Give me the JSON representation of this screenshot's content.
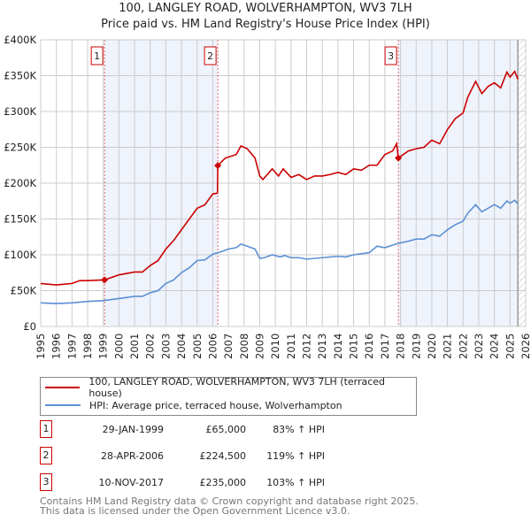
{
  "chart_data": {
    "type": "line",
    "title": "100, LANGLEY ROAD, WOLVERHAMPTON, WV3 7LH",
    "subtitle": "Price paid vs. HM Land Registry's House Price Index (HPI)",
    "xlim": [
      1995,
      2026
    ],
    "ylim": [
      0,
      400000
    ],
    "x_ticks": [
      "1995",
      "1996",
      "1997",
      "1998",
      "1999",
      "2000",
      "2001",
      "2002",
      "2003",
      "2004",
      "2005",
      "2006",
      "2007",
      "2008",
      "2009",
      "2010",
      "2011",
      "2012",
      "2013",
      "2014",
      "2015",
      "2016",
      "2017",
      "2018",
      "2019",
      "2020",
      "2021",
      "2022",
      "2023",
      "2024",
      "2025",
      "2026"
    ],
    "y_ticks": [
      {
        "v": 0,
        "label": "£0"
      },
      {
        "v": 50000,
        "label": "£50K"
      },
      {
        "v": 100000,
        "label": "£100K"
      },
      {
        "v": 150000,
        "label": "£150K"
      },
      {
        "v": 200000,
        "label": "£200K"
      },
      {
        "v": 250000,
        "label": "£250K"
      },
      {
        "v": 300000,
        "label": "£300K"
      },
      {
        "v": 350000,
        "label": "£350K"
      },
      {
        "v": 400000,
        "label": "£400K"
      }
    ],
    "grid": true,
    "legend_position": "below",
    "series": [
      {
        "name": "100, LANGLEY ROAD, WOLVERHAMPTON, WV3 7LH (terraced house)",
        "color": "#cc0000",
        "x": [
          1995,
          1996,
          1997,
          1997.5,
          1998,
          1999.08,
          2000,
          2001,
          2001.5,
          2002,
          2002.5,
          2003,
          2003.5,
          2004,
          2004.5,
          2005,
          2005.5,
          2006,
          2006.3,
          2006.32,
          2006.8,
          2007.5,
          2007.8,
          2008.2,
          2008.7,
          2009,
          2009.2,
          2009.8,
          2010.2,
          2010.5,
          2011,
          2011.5,
          2012,
          2012.5,
          2013,
          2013.5,
          2014,
          2014.5,
          2015,
          2015.5,
          2016,
          2016.5,
          2017,
          2017.5,
          2017.75,
          2017.86,
          2018.5,
          2019,
          2019.5,
          2020,
          2020.5,
          2021,
          2021.5,
          2022,
          2022.3,
          2022.8,
          2023.2,
          2023.6,
          2024,
          2024.4,
          2024.8,
          2025,
          2025.3,
          2025.5
        ],
        "y": [
          60000,
          58000,
          60000,
          64000,
          64000,
          65000,
          72000,
          76000,
          76000,
          85000,
          92000,
          108000,
          120000,
          135000,
          150000,
          165000,
          170000,
          185000,
          186000,
          224500,
          235000,
          240000,
          252000,
          248000,
          235000,
          210000,
          205000,
          220000,
          210000,
          220000,
          208000,
          212000,
          205000,
          210000,
          210000,
          212000,
          215000,
          212000,
          220000,
          218000,
          225000,
          225000,
          240000,
          245000,
          255000,
          235000,
          245000,
          248000,
          250000,
          260000,
          255000,
          275000,
          290000,
          298000,
          320000,
          342000,
          325000,
          335000,
          340000,
          333000,
          355000,
          348000,
          356000,
          345000
        ]
      },
      {
        "name": "HPI: Average price, terraced house, Wolverhampton",
        "color": "#5b8fd4",
        "x": [
          1995,
          1996,
          1997,
          1998,
          1999,
          2000,
          2001,
          2001.5,
          2002,
          2002.5,
          2003,
          2003.5,
          2004,
          2004.5,
          2005,
          2005.5,
          2006,
          2006.5,
          2007,
          2007.5,
          2007.8,
          2008.2,
          2008.7,
          2009,
          2009.3,
          2009.8,
          2010.3,
          2010.6,
          2011,
          2011.5,
          2012,
          2013,
          2014,
          2014.5,
          2015,
          2016,
          2016.5,
          2017,
          2017.86,
          2018.5,
          2019,
          2019.5,
          2020,
          2020.5,
          2021,
          2021.5,
          2022,
          2022.3,
          2022.8,
          2023.2,
          2023.6,
          2024,
          2024.4,
          2024.8,
          2025,
          2025.3,
          2025.5
        ],
        "y": [
          33000,
          32000,
          33000,
          35000,
          36000,
          39000,
          42000,
          42000,
          47000,
          50000,
          60000,
          65000,
          75000,
          82000,
          92000,
          93000,
          101000,
          104000,
          108000,
          110000,
          115000,
          112000,
          108000,
          95000,
          96000,
          100000,
          97000,
          99000,
          96000,
          96000,
          94000,
          96000,
          98000,
          97000,
          100000,
          103000,
          112000,
          110000,
          116000,
          119000,
          122000,
          122000,
          128000,
          126000,
          135000,
          142000,
          147000,
          158000,
          170000,
          160000,
          165000,
          170000,
          165000,
          175000,
          172000,
          176000,
          171000
        ]
      }
    ],
    "sales": [
      {
        "label": "1",
        "x": 1999.08,
        "y": 65000,
        "date": "29-JAN-1999",
        "price": "£65,000",
        "hpi": "83% ↑ HPI"
      },
      {
        "label": "2",
        "x": 2006.32,
        "y": 224500,
        "date": "28-APR-2006",
        "price": "£224,500",
        "hpi": "119% ↑ HPI"
      },
      {
        "label": "3",
        "x": 2017.86,
        "y": 235000,
        "date": "10-NOV-2017",
        "price": "£235,000",
        "hpi": "103% ↑ HPI"
      }
    ],
    "shaded_ranges": [
      [
        1999.08,
        2006.32
      ],
      [
        2017.86,
        2025.5
      ]
    ],
    "forecast_hatch_from": 2025.5
  },
  "footer": [
    "Contains HM Land Registry data © Crown copyright and database right 2025.",
    "This data is licensed under the Open Government Licence v3.0."
  ]
}
